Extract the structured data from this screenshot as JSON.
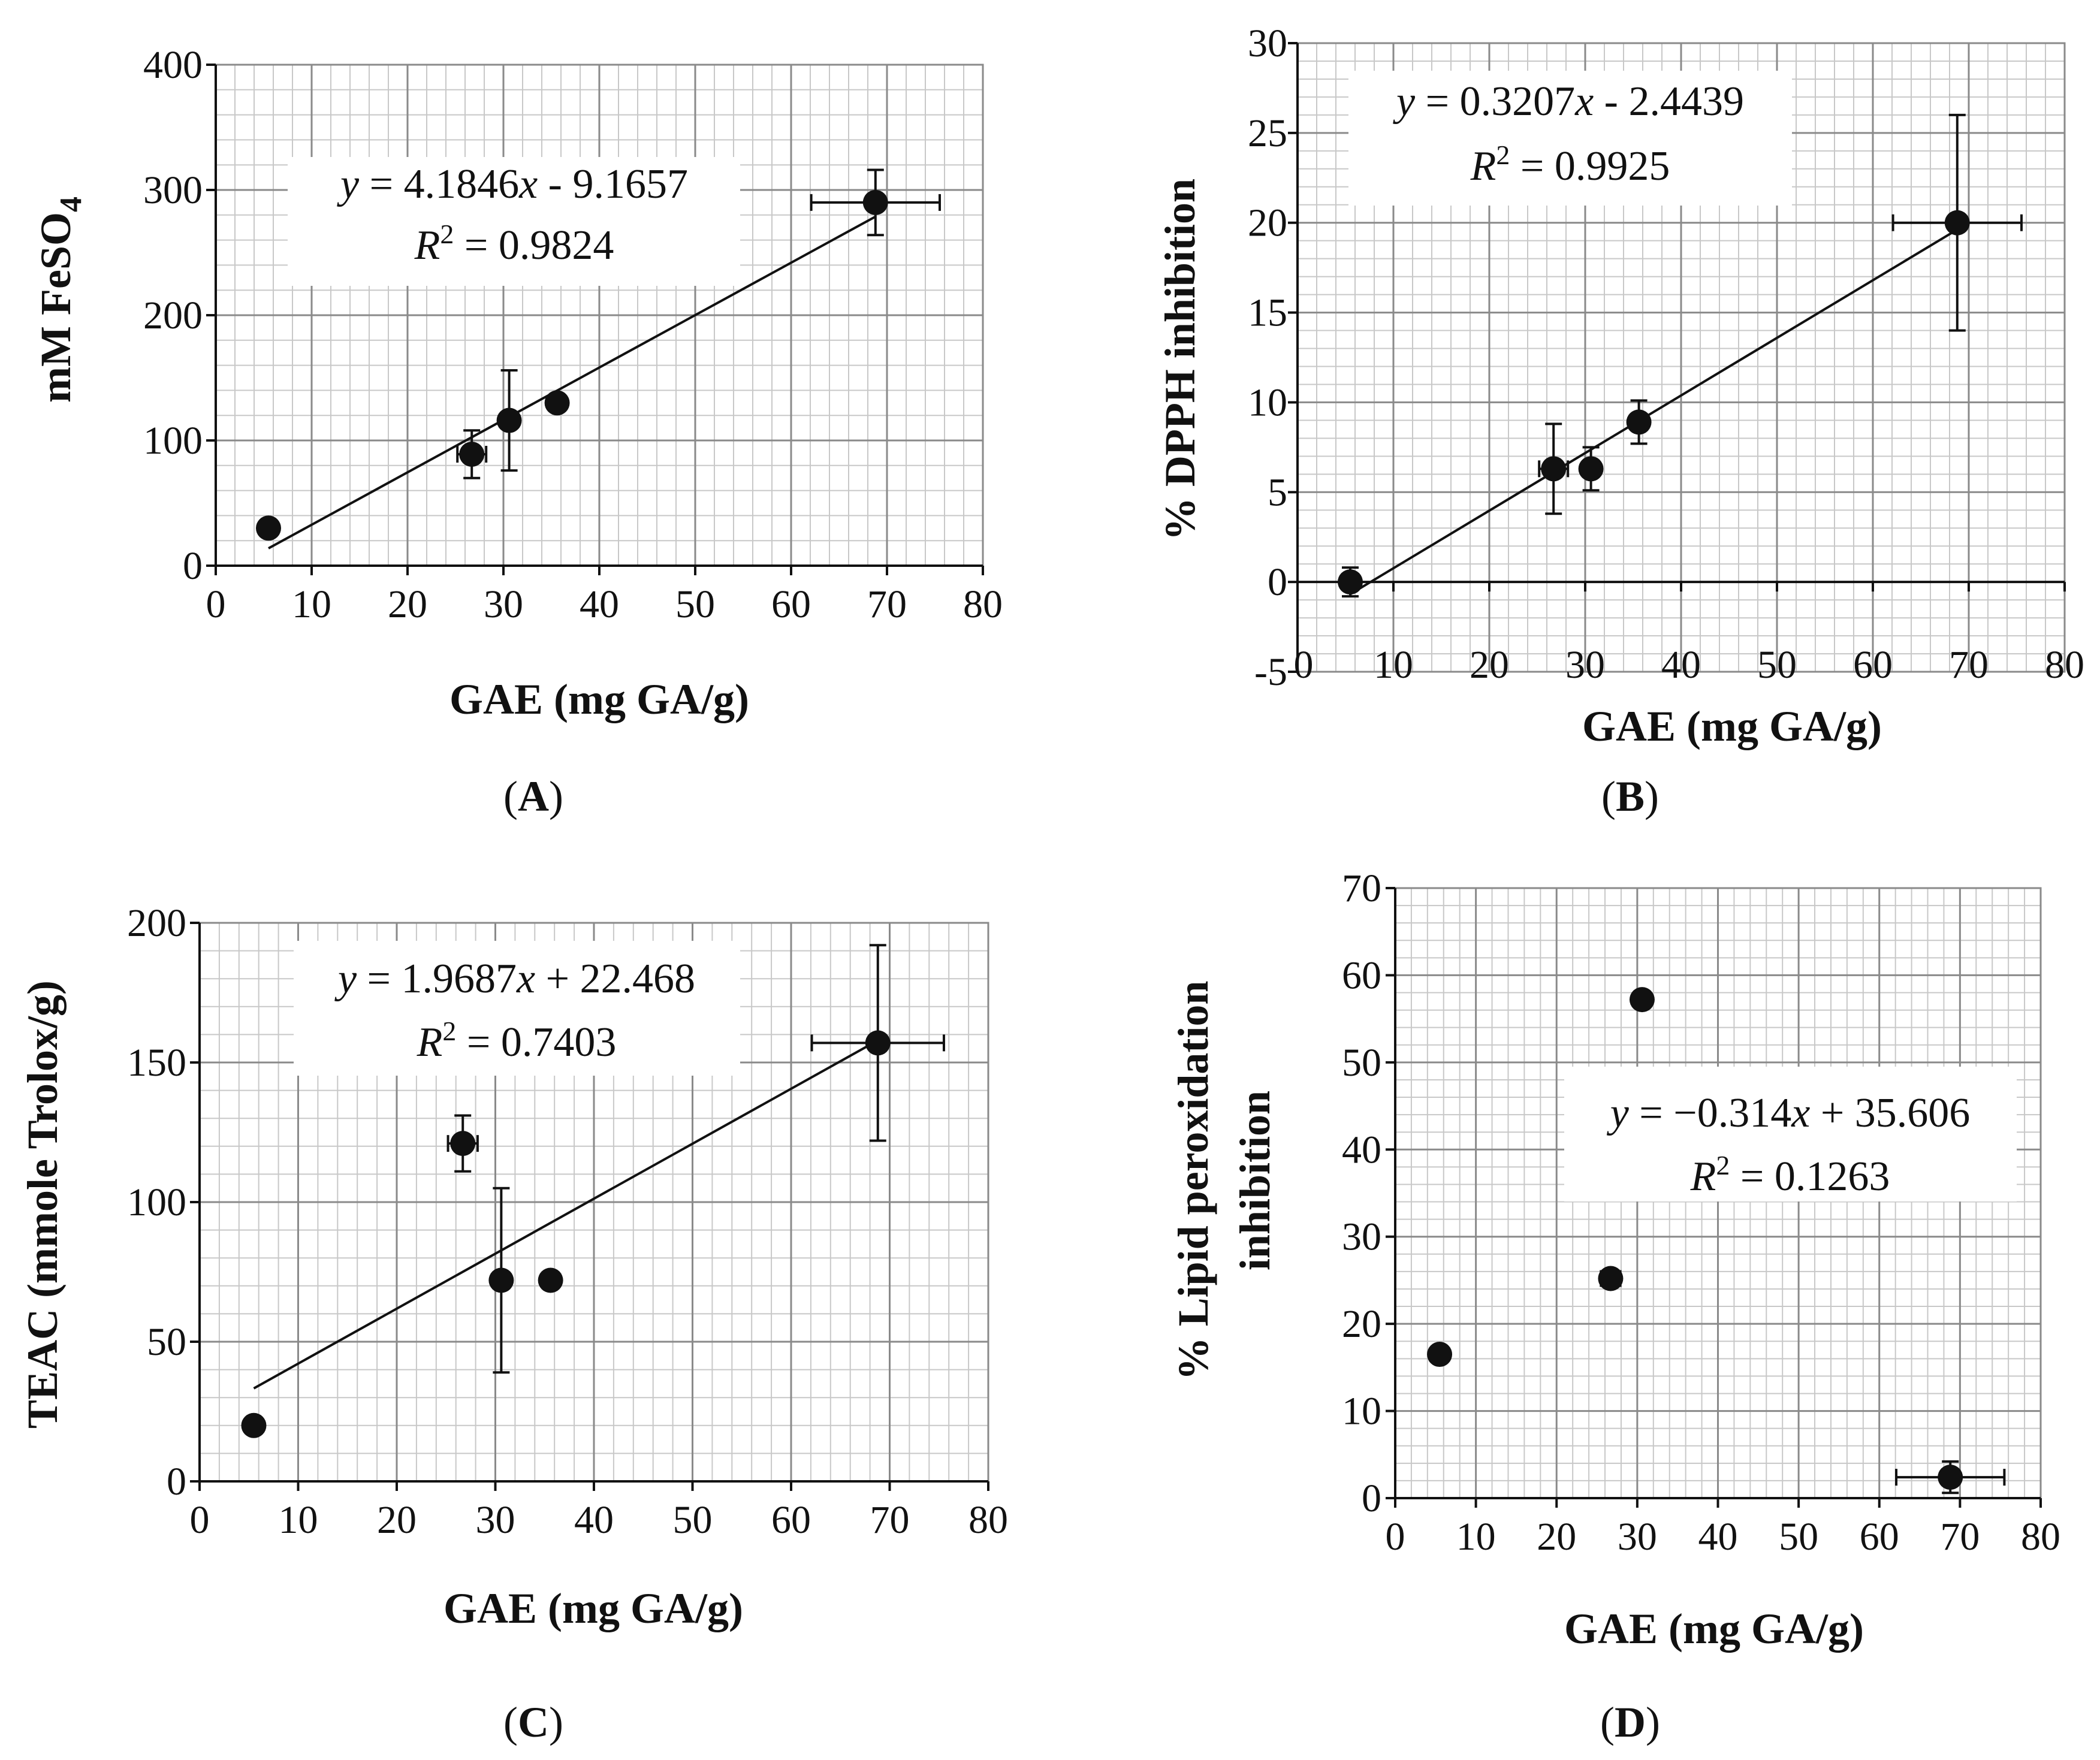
{
  "chart_data": [
    {
      "type": "scatter",
      "panel": "(A)",
      "panel_letter": "A",
      "xlabel": "GAE (mg GA/g)",
      "ylabel": "mM FeSO",
      "ylabel_sub": "4",
      "xlim": [
        0,
        80
      ],
      "ylim": [
        0,
        400
      ],
      "xticks": [
        0,
        10,
        20,
        30,
        40,
        50,
        60,
        70,
        80
      ],
      "yticks": [
        0,
        100,
        200,
        300,
        400
      ],
      "xminor_step": 2,
      "yminor_step": 20,
      "points": [
        {
          "x": 5.5,
          "y": 30,
          "xerr": 0.5,
          "yerr": 3
        },
        {
          "x": 26.7,
          "y": 89,
          "xerr": 1.5,
          "yerr": 19
        },
        {
          "x": 30.6,
          "y": 116,
          "xerr": 0.8,
          "yerr": 40
        },
        {
          "x": 35.6,
          "y": 130,
          "xerr": 0.5,
          "yerr": 3
        },
        {
          "x": 68.8,
          "y": 290,
          "xerr": 6.7,
          "yerr": 26
        }
      ],
      "trendline": {
        "slope": 4.1846,
        "intercept": -9.1657,
        "x_range": [
          5.5,
          68.8
        ]
      },
      "equation_text": {
        "y": "y",
        "middle": " = 4.1846",
        "x": "x",
        "rest": " - 9.1657"
      },
      "r2_text": {
        "r": "R",
        "sup": "2",
        "rest": " = 0.9824"
      }
    },
    {
      "type": "scatter",
      "panel": "(B)",
      "panel_letter": "B",
      "xlabel": "GAE (mg GA/g)",
      "ylabel": "% DPPH inhibition",
      "ylabel_sub": "",
      "xlim": [
        0,
        80
      ],
      "ylim": [
        -5,
        30
      ],
      "xticks": [
        0,
        10,
        20,
        30,
        40,
        50,
        60,
        70,
        80
      ],
      "yticks": [
        -5,
        0,
        5,
        10,
        15,
        20,
        25,
        30
      ],
      "xminor_step": 2,
      "yminor_step": 1,
      "points": [
        {
          "x": 5.5,
          "y": 0,
          "xerr": 0.5,
          "yerr": 0.8
        },
        {
          "x": 26.7,
          "y": 6.3,
          "xerr": 1.5,
          "yerr": 2.5
        },
        {
          "x": 30.6,
          "y": 6.3,
          "xerr": 0.8,
          "yerr": 1.2
        },
        {
          "x": 35.6,
          "y": 8.9,
          "xerr": 0.5,
          "yerr": 1.2
        },
        {
          "x": 68.8,
          "y": 20,
          "xerr": 6.7,
          "yerr": 6
        }
      ],
      "trendline": {
        "slope": 0.3207,
        "intercept": -2.4439,
        "x_range": [
          5.5,
          68.8
        ]
      },
      "equation_text": {
        "y": "y",
        "middle": " = 0.3207",
        "x": "x",
        "rest": " - 2.4439"
      },
      "r2_text": {
        "r": "R",
        "sup": "2",
        "rest": " = 0.9925"
      }
    },
    {
      "type": "scatter",
      "panel": "(C)",
      "panel_letter": "C",
      "xlabel": "GAE (mg GA/g)",
      "ylabel": "TEAC (mmole Trolox/g)",
      "ylabel_sub": "",
      "xlim": [
        0,
        80
      ],
      "ylim": [
        0,
        200
      ],
      "xticks": [
        0,
        10,
        20,
        30,
        40,
        50,
        60,
        70,
        80
      ],
      "yticks": [
        0,
        50,
        100,
        150,
        200
      ],
      "xminor_step": 2,
      "yminor_step": 10,
      "points": [
        {
          "x": 5.5,
          "y": 20,
          "xerr": 0.5,
          "yerr": 2
        },
        {
          "x": 26.7,
          "y": 121,
          "xerr": 1.5,
          "yerr": 10
        },
        {
          "x": 30.6,
          "y": 72,
          "xerr": 0.8,
          "yerr": 33
        },
        {
          "x": 35.6,
          "y": 72,
          "xerr": 0.5,
          "yerr": 2
        },
        {
          "x": 68.8,
          "y": 157,
          "xerr": 6.7,
          "yerr": 35
        }
      ],
      "trendline": {
        "slope": 1.9687,
        "intercept": 22.468,
        "x_range": [
          5.5,
          68.8
        ]
      },
      "equation_text": {
        "y": "y",
        "middle": " = 1.9687",
        "x": "x",
        "rest": " + 22.468"
      },
      "r2_text": {
        "r": "R",
        "sup": "2",
        "rest": " = 0.7403"
      }
    },
    {
      "type": "scatter",
      "panel": "(D)",
      "panel_letter": "D",
      "xlabel": "GAE (mg GA/g)",
      "ylabel": "% Lipid peroxidation",
      "ylabel2": "inhibition",
      "ylabel_sub": "",
      "xlim": [
        0,
        80
      ],
      "ylim": [
        0,
        70
      ],
      "xticks": [
        0,
        10,
        20,
        30,
        40,
        50,
        60,
        70,
        80
      ],
      "yticks": [
        0,
        10,
        20,
        30,
        40,
        50,
        60,
        70
      ],
      "xminor_step": 2,
      "yminor_step": 2,
      "points": [
        {
          "x": 5.5,
          "y": 16.5,
          "xerr": 0.5,
          "yerr": 0.8
        },
        {
          "x": 26.7,
          "y": 25.2,
          "xerr": 1.2,
          "yerr": 0.8
        },
        {
          "x": 30.6,
          "y": 57.2,
          "xerr": 0.8,
          "yerr": 0.5
        },
        {
          "x": 68.8,
          "y": 2.4,
          "xerr": 6.7,
          "yerr": 1.8
        }
      ],
      "trendline": null,
      "equation_text": {
        "y": "y",
        "middle": " = −0.314",
        "x": "x",
        "rest": " + 35.606"
      },
      "r2_text": {
        "r": "R",
        "sup": "2",
        "rest": " = 0.1263"
      }
    }
  ]
}
